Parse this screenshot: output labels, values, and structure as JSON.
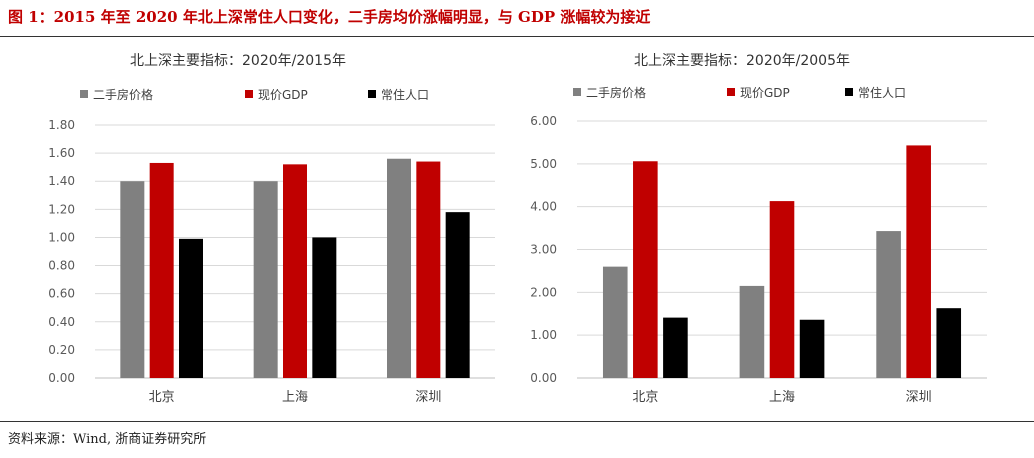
{
  "figure_title": "图 1：2015 年至 2020 年北上深常住人口变化，二手房均价涨幅明显，与 GDP 涨幅较为接近",
  "source": "资料来源：Wind, 浙商证券研究所",
  "colors": {
    "二手房价格": "#808080",
    "现价GDP": "#c00000",
    "常住人口": "#000000",
    "title": "#c00000",
    "grid": "#d9d9d9",
    "axis": "#bfbfbf",
    "tick": "#595959"
  },
  "chart_data": [
    {
      "type": "bar",
      "title": "北上深主要指标：2020年/2015年",
      "categories": [
        "北京",
        "上海",
        "深圳"
      ],
      "series": [
        {
          "name": "二手房价格",
          "values": [
            1.4,
            1.4,
            1.56
          ]
        },
        {
          "name": "现价GDP",
          "values": [
            1.53,
            1.52,
            1.54
          ]
        },
        {
          "name": "常住人口",
          "values": [
            0.99,
            1.0,
            1.18
          ]
        }
      ],
      "yticks": [
        "0.00",
        "0.20",
        "0.40",
        "0.60",
        "0.80",
        "1.00",
        "1.20",
        "1.40",
        "1.60",
        "1.80"
      ],
      "ylim": [
        0,
        1.8
      ],
      "grid": true,
      "legend": "top"
    },
    {
      "type": "bar",
      "title": "北上深主要指标：2020年/2005年",
      "categories": [
        "北京",
        "上海",
        "深圳"
      ],
      "series": [
        {
          "name": "二手房价格",
          "values": [
            2.6,
            2.15,
            3.43
          ]
        },
        {
          "name": "现价GDP",
          "values": [
            5.06,
            4.13,
            5.43
          ]
        },
        {
          "name": "常住人口",
          "values": [
            1.41,
            1.36,
            1.63
          ]
        }
      ],
      "yticks": [
        "0.00",
        "1.00",
        "2.00",
        "3.00",
        "4.00",
        "5.00",
        "6.00"
      ],
      "ylim": [
        0,
        6
      ],
      "grid": true,
      "legend": "top"
    }
  ]
}
